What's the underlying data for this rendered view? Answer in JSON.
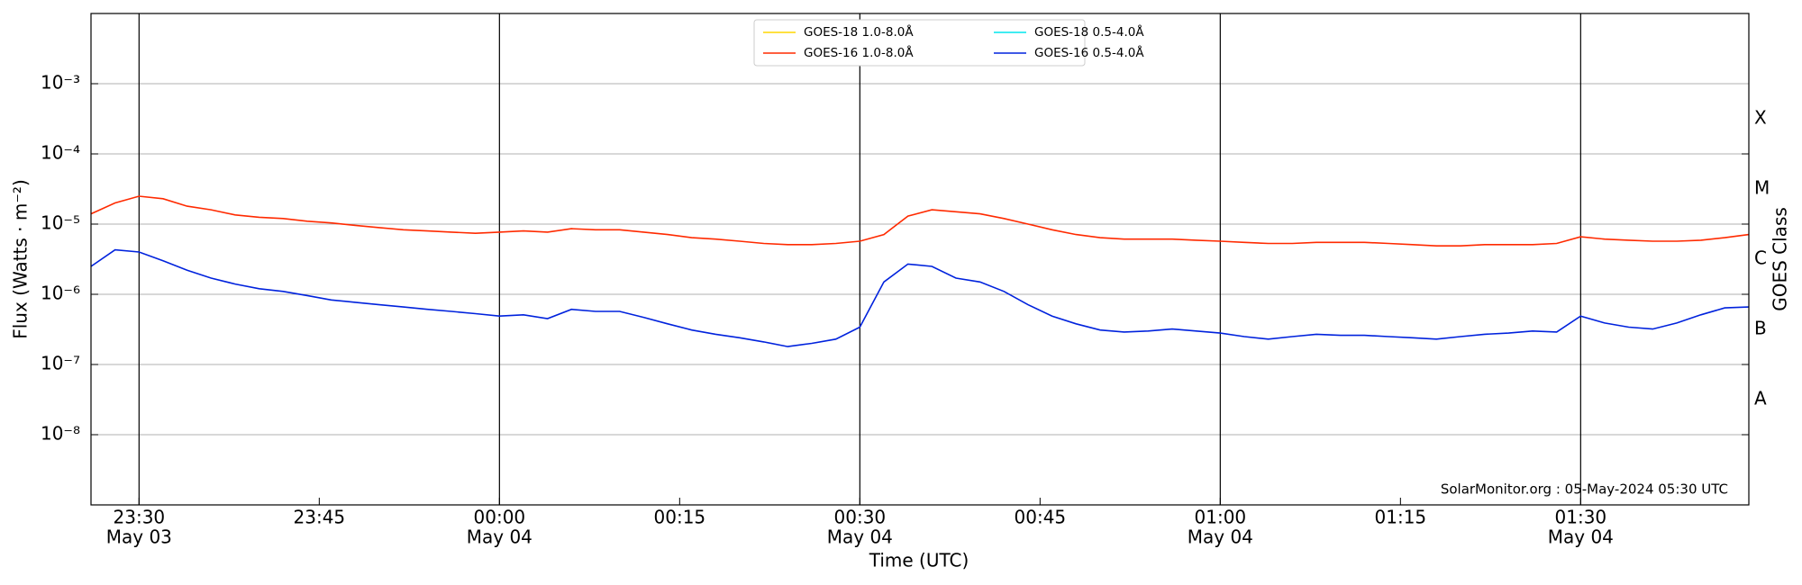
{
  "chart_data": {
    "type": "line",
    "xlabel": "Time (UTC)",
    "ylabel": "Flux (Watts · m⁻²)",
    "y2label": "GOES Class",
    "annotation": "SolarMonitor.org : 05-May-2024 05:30 UTC",
    "log_y": true,
    "grid": true,
    "legend": "upper center",
    "xlim": [
      "May 03 23:26",
      "May 04 01:44"
    ],
    "xticks": [
      {
        "value": "May 03 23:30",
        "label": "23:30",
        "date": "May 03"
      },
      {
        "value": "May 03 23:45",
        "label": "23:45"
      },
      {
        "value": "May 04 00:00",
        "label": "00:00",
        "date": "May 04"
      },
      {
        "value": "May 04 00:15",
        "label": "00:15"
      },
      {
        "value": "May 04 00:30",
        "label": "00:30",
        "date": "May 04"
      },
      {
        "value": "May 04 00:45",
        "label": "00:45"
      },
      {
        "value": "May 04 01:00",
        "label": "01:00",
        "date": "May 04"
      },
      {
        "value": "May 04 01:15",
        "label": "01:15"
      },
      {
        "value": "May 04 01:30",
        "label": "01:30",
        "date": "May 04"
      }
    ],
    "ylim": [
      1e-09,
      0.01
    ],
    "yticks": [
      {
        "value": 1e-08,
        "label": "10⁻⁸"
      },
      {
        "value": 1e-07,
        "label": "10⁻⁷"
      },
      {
        "value": 1e-06,
        "label": "10⁻⁶"
      },
      {
        "value": 1e-05,
        "label": "10⁻⁵"
      },
      {
        "value": 0.0001,
        "label": "10⁻⁴"
      },
      {
        "value": 0.001,
        "label": "10⁻³"
      }
    ],
    "y2lim": [
      1e-09,
      0.01
    ],
    "y2ticks": [
      {
        "value": 1e-08,
        "label": "A"
      },
      {
        "value": 1e-07,
        "label": "B"
      },
      {
        "value": 1e-06,
        "label": "C"
      },
      {
        "value": 1e-05,
        "label": "M"
      },
      {
        "value": 0.0001,
        "label": "X"
      }
    ],
    "x": [
      "May 03 23:26",
      "May 03 23:28",
      "May 03 23:30",
      "May 03 23:32",
      "May 03 23:34",
      "May 03 23:36",
      "May 03 23:38",
      "May 03 23:40",
      "May 03 23:42",
      "May 03 23:44",
      "May 03 23:46",
      "May 03 23:48",
      "May 03 23:50",
      "May 03 23:52",
      "May 03 23:54",
      "May 03 23:56",
      "May 03 23:58",
      "May 04 00:00",
      "May 04 00:02",
      "May 04 00:04",
      "May 04 00:06",
      "May 04 00:08",
      "May 04 00:10",
      "May 04 00:12",
      "May 04 00:14",
      "May 04 00:16",
      "May 04 00:18",
      "May 04 00:20",
      "May 04 00:22",
      "May 04 00:24",
      "May 04 00:26",
      "May 04 00:28",
      "May 04 00:30",
      "May 04 00:32",
      "May 04 00:34",
      "May 04 00:36",
      "May 04 00:38",
      "May 04 00:40",
      "May 04 00:42",
      "May 04 00:44",
      "May 04 00:46",
      "May 04 00:48",
      "May 04 00:50",
      "May 04 00:52",
      "May 04 00:54",
      "May 04 00:56",
      "May 04 00:58",
      "May 04 01:00",
      "May 04 01:02",
      "May 04 01:04",
      "May 04 01:06",
      "May 04 01:08",
      "May 04 01:10",
      "May 04 01:12",
      "May 04 01:14",
      "May 04 01:16",
      "May 04 01:18",
      "May 04 01:20",
      "May 04 01:22",
      "May 04 01:24",
      "May 04 01:26",
      "May 04 01:28",
      "May 04 01:30",
      "May 04 01:32",
      "May 04 01:34",
      "May 04 01:36",
      "May 04 01:38",
      "May 04 01:40",
      "May 04 01:42",
      "May 04 01:44"
    ],
    "series": [
      {
        "name": "GOES-18 1.0-8.0Å",
        "color": "#ffd700",
        "values": [
          null,
          null,
          null,
          null,
          null,
          null,
          null,
          null,
          null,
          null,
          null,
          null,
          null,
          null,
          null,
          null,
          null,
          null,
          null,
          null,
          null,
          null,
          null,
          null,
          null,
          null,
          null,
          null,
          null,
          null,
          null,
          null,
          null,
          null,
          null,
          null,
          null,
          null,
          null,
          null,
          null,
          null,
          null,
          null,
          null,
          null,
          null,
          null,
          null,
          null,
          null,
          null,
          null,
          null,
          null,
          null,
          null,
          null,
          null,
          null,
          null,
          null,
          null,
          null,
          null,
          null,
          null,
          null,
          null,
          null
        ]
      },
      {
        "name": "GOES-16 1.0-8.0Å",
        "color": "#ff2a00",
        "values": [
          1.4e-05,
          2e-05,
          2.5e-05,
          2.3e-05,
          1.8e-05,
          1.6e-05,
          1.35e-05,
          1.25e-05,
          1.2e-05,
          1.1e-05,
          1.04e-05,
          9.6e-06,
          8.9e-06,
          8.3e-06,
          8e-06,
          7.7e-06,
          7.4e-06,
          7.7e-06,
          8e-06,
          7.7e-06,
          8.6e-06,
          8.3e-06,
          8.3e-06,
          7.7e-06,
          7.1e-06,
          6.4e-06,
          6.1e-06,
          5.7e-06,
          5.3e-06,
          5.1e-06,
          5.1e-06,
          5.3e-06,
          5.7e-06,
          7.1e-06,
          1.3e-05,
          1.6e-05,
          1.5e-05,
          1.4e-05,
          1.2e-05,
          1e-05,
          8.3e-06,
          7.1e-06,
          6.4e-06,
          6.1e-06,
          6.1e-06,
          6.1e-06,
          5.9e-06,
          5.7e-06,
          5.5e-06,
          5.3e-06,
          5.3e-06,
          5.5e-06,
          5.5e-06,
          5.5e-06,
          5.3e-06,
          5.1e-06,
          4.9e-06,
          4.9e-06,
          5.1e-06,
          5.1e-06,
          5.1e-06,
          5.3e-06,
          6.6e-06,
          6.1e-06,
          5.9e-06,
          5.7e-06,
          5.7e-06,
          5.9e-06,
          6.4e-06,
          7.1e-06
        ]
      },
      {
        "name": "GOES-18 0.5-4.0Å",
        "color": "#00e5ee",
        "values": [
          null,
          null,
          null,
          null,
          null,
          null,
          null,
          null,
          null,
          null,
          null,
          null,
          null,
          null,
          null,
          null,
          null,
          null,
          null,
          null,
          null,
          null,
          null,
          null,
          null,
          null,
          null,
          null,
          null,
          null,
          null,
          null,
          null,
          null,
          null,
          null,
          null,
          null,
          null,
          null,
          null,
          null,
          null,
          null,
          null,
          null,
          null,
          null,
          null,
          null,
          null,
          null,
          null,
          null,
          null,
          null,
          null,
          null,
          null,
          null,
          null,
          null,
          null,
          null,
          null,
          null,
          null,
          null,
          null,
          null
        ]
      },
      {
        "name": "GOES-16 0.5-4.0Å",
        "color": "#0022dd",
        "values": [
          2.5e-06,
          4.3e-06,
          4e-06,
          3e-06,
          2.2e-06,
          1.7e-06,
          1.4e-06,
          1.2e-06,
          1.1e-06,
          9.6e-07,
          8.3e-07,
          7.7e-07,
          7.1e-07,
          6.6e-07,
          6.1e-07,
          5.7e-07,
          5.3e-07,
          4.9e-07,
          5.1e-07,
          4.5e-07,
          6.1e-07,
          5.7e-07,
          5.7e-07,
          4.7e-07,
          3.8e-07,
          3.1e-07,
          2.7e-07,
          2.4e-07,
          2.1e-07,
          1.8e-07,
          2e-07,
          2.3e-07,
          3.4e-07,
          1.5e-06,
          2.7e-06,
          2.5e-06,
          1.7e-06,
          1.5e-06,
          1.1e-06,
          7.1e-07,
          4.9e-07,
          3.8e-07,
          3.1e-07,
          2.9e-07,
          3e-07,
          3.2e-07,
          3e-07,
          2.8e-07,
          2.5e-07,
          2.3e-07,
          2.5e-07,
          2.7e-07,
          2.6e-07,
          2.6e-07,
          2.5e-07,
          2.4e-07,
          2.3e-07,
          2.5e-07,
          2.7e-07,
          2.8e-07,
          3e-07,
          2.9e-07,
          4.9e-07,
          3.9e-07,
          3.4e-07,
          3.2e-07,
          3.9e-07,
          5.1e-07,
          6.4e-07,
          6.6e-07
        ]
      }
    ]
  }
}
